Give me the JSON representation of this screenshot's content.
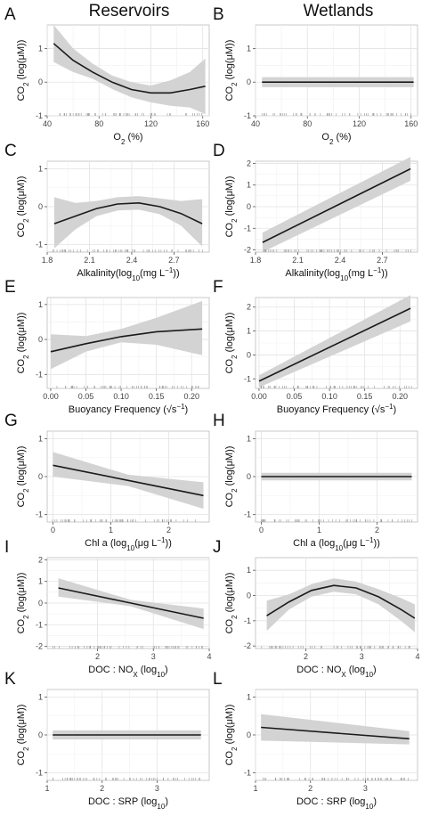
{
  "headers": [
    "Reservoirs",
    "Wetlands"
  ],
  "colors": {
    "band": "#d3d3d3",
    "line": "#1a1a1a",
    "grid_major": "#e3e3e3",
    "grid_minor": "#f1f1f1",
    "rug": "#9a9a9a"
  },
  "chart_data": [
    {
      "panel": "A",
      "type": "line",
      "xlim": [
        40,
        165
      ],
      "ylim": [
        -1,
        1.7
      ],
      "xticks": [
        40,
        80,
        120,
        160
      ],
      "yticks": [
        -1,
        0,
        1
      ],
      "xlabel": [
        [
          "O",
          ""
        ],
        [
          "2",
          "sub"
        ],
        [
          " (%)",
          ""
        ]
      ],
      "ylabel": [
        [
          "CO",
          ""
        ],
        [
          "2",
          "sub"
        ],
        [
          " (log(μM))",
          ""
        ]
      ],
      "x": [
        45,
        60,
        75,
        90,
        105,
        120,
        135,
        150,
        162
      ],
      "y": [
        1.15,
        0.65,
        0.3,
        0.0,
        -0.22,
        -0.32,
        -0.32,
        -0.22,
        -0.12
      ],
      "lower": [
        0.6,
        0.3,
        0.1,
        -0.2,
        -0.45,
        -0.6,
        -0.7,
        -0.75,
        -0.95
      ],
      "upper": [
        1.7,
        1.0,
        0.55,
        0.2,
        0.0,
        -0.1,
        0.05,
        0.3,
        0.7
      ]
    },
    {
      "panel": "B",
      "type": "line",
      "xlim": [
        40,
        165
      ],
      "ylim": [
        -1,
        1.7
      ],
      "xticks": [
        40,
        80,
        120,
        160
      ],
      "yticks": [
        -1,
        0,
        1
      ],
      "xlabel": [
        [
          "O",
          ""
        ],
        [
          "2",
          "sub"
        ],
        [
          " (%)",
          ""
        ]
      ],
      "ylabel": [
        [
          "CO",
          ""
        ],
        [
          "2",
          "sub"
        ],
        [
          " (log(μM))",
          ""
        ]
      ],
      "x": [
        45,
        162
      ],
      "y": [
        0,
        0
      ],
      "lower": [
        -0.15,
        -0.15
      ],
      "upper": [
        0.15,
        0.15
      ]
    },
    {
      "panel": "C",
      "type": "line",
      "xlim": [
        1.8,
        2.95
      ],
      "ylim": [
        -1.2,
        1.2
      ],
      "xticks": [
        1.8,
        2.1,
        2.4,
        2.7
      ],
      "yticks": [
        -1,
        0,
        1
      ],
      "xlabel": [
        [
          "Alkalinity(log",
          ""
        ],
        [
          "10",
          "sub"
        ],
        [
          "(mg L",
          ""
        ],
        [
          "−1",
          "sup"
        ],
        [
          "))",
          ""
        ]
      ],
      "ylabel": [
        [
          "CO",
          ""
        ],
        [
          "2",
          "sub"
        ],
        [
          " (log(μM))",
          ""
        ]
      ],
      "x": [
        1.85,
        2.0,
        2.15,
        2.3,
        2.45,
        2.6,
        2.75,
        2.9
      ],
      "y": [
        -0.45,
        -0.25,
        -0.05,
        0.07,
        0.1,
        0.0,
        -0.18,
        -0.45
      ],
      "lower": [
        -1.1,
        -0.6,
        -0.25,
        -0.1,
        -0.08,
        -0.2,
        -0.5,
        -1.05
      ],
      "upper": [
        0.25,
        0.1,
        0.15,
        0.25,
        0.28,
        0.22,
        0.15,
        0.2
      ]
    },
    {
      "panel": "D",
      "type": "line",
      "xlim": [
        1.8,
        2.95
      ],
      "ylim": [
        -2.1,
        2.1
      ],
      "xticks": [
        1.8,
        2.1,
        2.4,
        2.7
      ],
      "yticks": [
        -2,
        -1,
        0,
        1,
        2
      ],
      "xlabel": [
        [
          "Alkalinity(log",
          ""
        ],
        [
          "10",
          "sub"
        ],
        [
          "(mg L",
          ""
        ],
        [
          "−1",
          "sup"
        ],
        [
          "))",
          ""
        ]
      ],
      "ylabel": [
        [
          "CO",
          ""
        ],
        [
          "2",
          "sub"
        ],
        [
          " (log(μM))",
          ""
        ]
      ],
      "x": [
        1.85,
        2.9
      ],
      "y": [
        -1.65,
        1.75
      ],
      "lower": [
        -2.1,
        1.2
      ],
      "upper": [
        -1.2,
        2.3
      ]
    },
    {
      "panel": "E",
      "type": "line",
      "xlim": [
        -0.005,
        0.225
      ],
      "ylim": [
        -1.4,
        1.2
      ],
      "xticks": [
        0.0,
        0.05,
        0.1,
        0.15,
        0.2
      ],
      "xticklabels": [
        "0.00",
        "0.05",
        "0.10",
        "0.15",
        "0.20"
      ],
      "yticks": [
        -1,
        0,
        1
      ],
      "xlabel": [
        [
          "Buoyancy Frequency (√s",
          ""
        ],
        [
          "−1",
          "sup"
        ],
        [
          ")",
          ""
        ]
      ],
      "ylabel": [
        [
          "CO",
          ""
        ],
        [
          "2",
          "sub"
        ],
        [
          " (log(μM))",
          ""
        ]
      ],
      "x": [
        0.0,
        0.05,
        0.1,
        0.15,
        0.215
      ],
      "y": [
        -0.35,
        -0.12,
        0.08,
        0.22,
        0.3
      ],
      "lower": [
        -0.85,
        -0.35,
        -0.08,
        -0.15,
        -0.45
      ],
      "upper": [
        0.15,
        0.1,
        0.3,
        0.62,
        1.1
      ]
    },
    {
      "panel": "F",
      "type": "line",
      "xlim": [
        -0.005,
        0.225
      ],
      "ylim": [
        -1.4,
        2.4
      ],
      "xticks": [
        0.0,
        0.05,
        0.1,
        0.15,
        0.2
      ],
      "xticklabels": [
        "0.00",
        "0.05",
        "0.10",
        "0.15",
        "0.20"
      ],
      "yticks": [
        -1,
        0,
        1,
        2
      ],
      "xlabel": [
        [
          "Buoyancy Frequency (√s",
          ""
        ],
        [
          "−1",
          "sup"
        ],
        [
          ")",
          ""
        ]
      ],
      "ylabel": [
        [
          "CO",
          ""
        ],
        [
          "2",
          "sub"
        ],
        [
          " (log(μM))",
          ""
        ]
      ],
      "x": [
        0.0,
        0.215
      ],
      "y": [
        -1.1,
        1.95
      ],
      "lower": [
        -1.35,
        1.4
      ],
      "upper": [
        -0.85,
        2.5
      ]
    },
    {
      "panel": "G",
      "type": "line",
      "xlim": [
        -0.1,
        2.7
      ],
      "ylim": [
        -1.2,
        1.2
      ],
      "xticks": [
        0,
        1,
        2
      ],
      "yticks": [
        -1,
        0,
        1
      ],
      "xlabel": [
        [
          "Chl a (log",
          ""
        ],
        [
          "10",
          "sub"
        ],
        [
          "(μg L",
          ""
        ],
        [
          "−1",
          "sup"
        ],
        [
          "))",
          ""
        ]
      ],
      "ylabel": [
        [
          "CO",
          ""
        ],
        [
          "2",
          "sub"
        ],
        [
          " (log(μM))",
          ""
        ]
      ],
      "x": [
        0.0,
        1.3,
        2.6
      ],
      "y": [
        0.3,
        -0.1,
        -0.5
      ],
      "lower": [
        0.0,
        -0.25,
        -0.85
      ],
      "upper": [
        0.65,
        0.05,
        -0.15
      ]
    },
    {
      "panel": "H",
      "type": "line",
      "xlim": [
        -0.1,
        2.7
      ],
      "ylim": [
        -1.2,
        1.2
      ],
      "xticks": [
        0,
        1,
        2
      ],
      "yticks": [
        -1,
        0,
        1
      ],
      "xlabel": [
        [
          "Chl a (log",
          ""
        ],
        [
          "10",
          "sub"
        ],
        [
          "(μg L",
          ""
        ],
        [
          "−1",
          "sup"
        ],
        [
          "))",
          ""
        ]
      ],
      "ylabel": [
        [
          "CO",
          ""
        ],
        [
          "2",
          "sub"
        ],
        [
          " (log(μM))",
          ""
        ]
      ],
      "x": [
        0.0,
        2.6
      ],
      "y": [
        0,
        0
      ],
      "lower": [
        -0.1,
        -0.1
      ],
      "upper": [
        0.1,
        0.1
      ]
    },
    {
      "panel": "I",
      "type": "line",
      "xlim": [
        1.1,
        4.0
      ],
      "ylim": [
        -2.1,
        2.1
      ],
      "xticks": [
        2,
        3,
        4
      ],
      "yticks": [
        -2,
        -1,
        0,
        1,
        2
      ],
      "xlabel": [
        [
          "DOC : NO",
          ""
        ],
        [
          "X",
          "sub"
        ],
        [
          " (log",
          ""
        ],
        [
          "10",
          "sub"
        ],
        [
          ")",
          ""
        ]
      ],
      "ylabel": [
        [
          "CO",
          ""
        ],
        [
          "2",
          "sub"
        ],
        [
          " (log(μM))",
          ""
        ]
      ],
      "x": [
        1.3,
        2.6,
        3.9
      ],
      "y": [
        0.7,
        0.0,
        -0.7
      ],
      "lower": [
        0.3,
        -0.15,
        -1.2
      ],
      "upper": [
        1.15,
        0.15,
        -0.25
      ]
    },
    {
      "panel": "J",
      "type": "line",
      "xlim": [
        1.1,
        4.0
      ],
      "ylim": [
        -2.1,
        1.5
      ],
      "xticks": [
        2,
        3,
        4
      ],
      "yticks": [
        -2,
        -1,
        0,
        1
      ],
      "xlabel": [
        [
          "DOC : NO",
          ""
        ],
        [
          "X",
          "sub"
        ],
        [
          " (log",
          ""
        ],
        [
          "10",
          "sub"
        ],
        [
          ")",
          ""
        ]
      ],
      "ylabel": [
        [
          "CO",
          ""
        ],
        [
          "2",
          "sub"
        ],
        [
          " (log(μM))",
          ""
        ]
      ],
      "x": [
        1.3,
        1.7,
        2.1,
        2.5,
        2.9,
        3.3,
        3.7,
        3.95
      ],
      "y": [
        -0.8,
        -0.25,
        0.2,
        0.4,
        0.3,
        -0.05,
        -0.55,
        -0.9
      ],
      "lower": [
        -1.4,
        -0.55,
        -0.05,
        0.15,
        0.05,
        -0.35,
        -1.0,
        -1.45
      ],
      "upper": [
        -0.2,
        0.05,
        0.45,
        0.68,
        0.55,
        0.25,
        -0.1,
        -0.35
      ]
    },
    {
      "panel": "K",
      "type": "line",
      "xlim": [
        1.0,
        3.95
      ],
      "ylim": [
        -1.2,
        1.2
      ],
      "xticks": [
        1,
        2,
        3
      ],
      "yticks": [
        -1,
        0,
        1
      ],
      "xlabel": [
        [
          "DOC : SRP (log",
          ""
        ],
        [
          "10",
          "sub"
        ],
        [
          ")",
          ""
        ]
      ],
      "ylabel": [
        [
          "CO",
          ""
        ],
        [
          "2",
          "sub"
        ],
        [
          " (log(μM))",
          ""
        ]
      ],
      "x": [
        1.1,
        3.8
      ],
      "y": [
        0,
        0
      ],
      "lower": [
        -0.12,
        -0.12
      ],
      "upper": [
        0.12,
        0.12
      ]
    },
    {
      "panel": "L",
      "type": "line",
      "xlim": [
        1.0,
        3.95
      ],
      "ylim": [
        -1.2,
        1.2
      ],
      "xticks": [
        1,
        2,
        3
      ],
      "yticks": [
        -1,
        0,
        1
      ],
      "xlabel": [
        [
          "DOC : SRP (log",
          ""
        ],
        [
          "10",
          "sub"
        ],
        [
          ")",
          ""
        ]
      ],
      "ylabel": [
        [
          "CO",
          ""
        ],
        [
          "2",
          "sub"
        ],
        [
          " (log(μM))",
          ""
        ]
      ],
      "x": [
        1.1,
        3.8
      ],
      "y": [
        0.2,
        -0.1
      ],
      "lower": [
        -0.15,
        -0.25
      ],
      "upper": [
        0.55,
        0.1
      ]
    }
  ]
}
